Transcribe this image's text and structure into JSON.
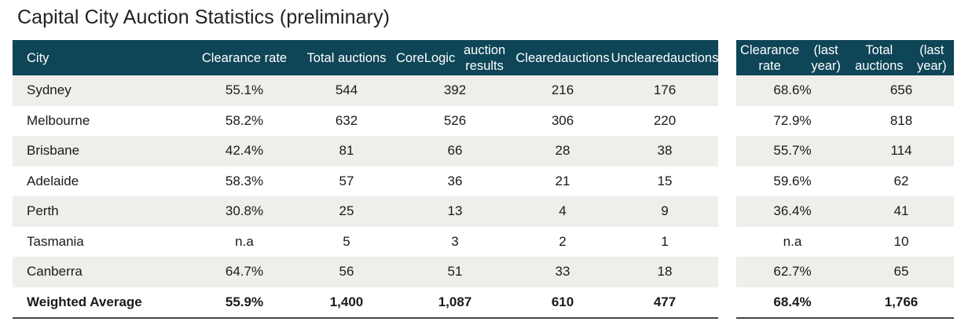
{
  "title": "Capital City Auction Statistics (preliminary)",
  "chart_data": {
    "type": "table",
    "title": "Capital City Auction Statistics (preliminary)",
    "columns": [
      "City",
      "Clearance rate",
      "Total auctions",
      "CoreLogic auction results",
      "Cleared auctions",
      "Uncleared auctions",
      "Clearance rate (last year)",
      "Total auctions (last year)"
    ],
    "header_lines": [
      [
        "City"
      ],
      [
        "Clearance rate"
      ],
      [
        "Total auctions"
      ],
      [
        "CoreLogic",
        "auction results"
      ],
      [
        "Cleared",
        "auctions"
      ],
      [
        "Uncleared",
        "auctions"
      ],
      [
        "Clearance rate",
        "(last year)"
      ],
      [
        "Total auctions",
        "(last year)"
      ]
    ],
    "rows": [
      [
        "Sydney",
        "55.1%",
        "544",
        "392",
        "216",
        "176",
        "68.6%",
        "656"
      ],
      [
        "Melbourne",
        "58.2%",
        "632",
        "526",
        "306",
        "220",
        "72.9%",
        "818"
      ],
      [
        "Brisbane",
        "42.4%",
        "81",
        "66",
        "28",
        "38",
        "55.7%",
        "114"
      ],
      [
        "Adelaide",
        "58.3%",
        "57",
        "36",
        "21",
        "15",
        "59.6%",
        "62"
      ],
      [
        "Perth",
        "30.8%",
        "25",
        "13",
        "4",
        "9",
        "36.4%",
        "41"
      ],
      [
        "Tasmania",
        "n.a",
        "5",
        "3",
        "2",
        "1",
        "n.a",
        "10"
      ],
      [
        "Canberra",
        "64.7%",
        "56",
        "51",
        "33",
        "18",
        "62.7%",
        "65"
      ]
    ],
    "total": [
      "Weighted Average",
      "55.9%",
      "1,400",
      "1,087",
      "610",
      "477",
      "68.4%",
      "1,766"
    ]
  },
  "colors": {
    "header_bg": "#0e4557",
    "header_text": "#ffffff",
    "row_shade": "#efeeea",
    "title_text": "#222222"
  }
}
